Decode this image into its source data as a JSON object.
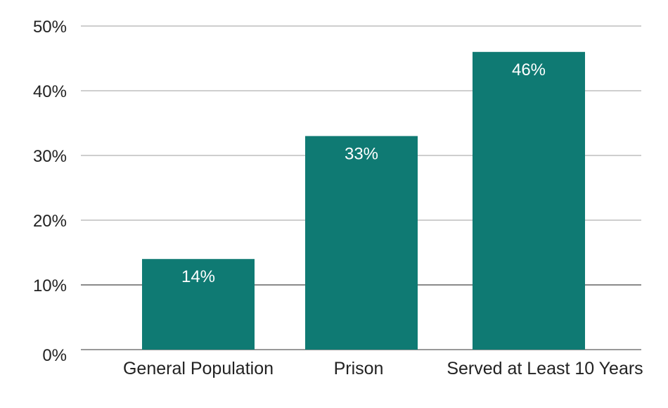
{
  "chart_data": {
    "type": "bar",
    "title": "",
    "xlabel": "",
    "ylabel": "",
    "categories": [
      "General Population",
      "Prison",
      "Served at Least 10 Years"
    ],
    "values": [
      14,
      33,
      46
    ],
    "data_labels": [
      "14%",
      "33%",
      "46%"
    ],
    "ylim": [
      0,
      50
    ],
    "yticks": [
      0,
      10,
      20,
      30,
      40,
      50
    ],
    "ytick_labels": [
      "0%",
      "10%",
      "20%",
      "30%",
      "40%",
      "50%"
    ],
    "grid": true,
    "legend": "none",
    "colors": {
      "bar": "#0f7a73",
      "label": "#ffffff",
      "grid": "#b0b0b0",
      "axis": "#222222"
    }
  }
}
